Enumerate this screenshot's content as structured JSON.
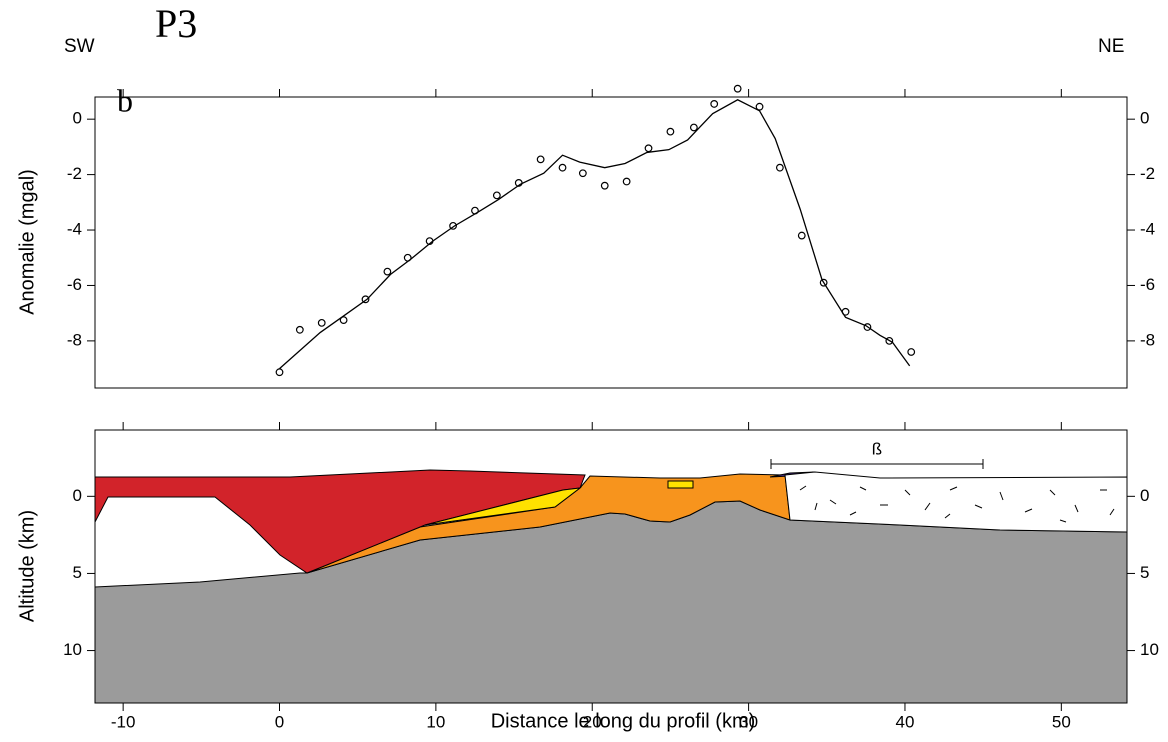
{
  "chart_data": [
    {
      "type": "scatter-line",
      "title": "P3",
      "left_label": "SW",
      "right_label": "NE",
      "panel_label": "b",
      "y_label": "Anomalie (mgal)",
      "xlim": [
        -11.8,
        54.2
      ],
      "xticks": [
        -10,
        0,
        10,
        20,
        30,
        40,
        50
      ],
      "ylim": [
        -9.7,
        0.8
      ],
      "yticks": [
        0,
        -2,
        -4,
        -6,
        -8
      ],
      "series": [
        {
          "style": "markers",
          "color": "#000000",
          "x": [
            0,
            1.3,
            2.7,
            4.1,
            5.5,
            6.9,
            8.2,
            9.6,
            11.1,
            12.5,
            13.9,
            15.3,
            16.7,
            18.1,
            19.4,
            20.8,
            22.2,
            23.6,
            25.0,
            26.5,
            27.8,
            29.3,
            30.7,
            32.0,
            33.4,
            34.8,
            36.2,
            37.6,
            39.0,
            40.4
          ],
          "values": [
            -9.13,
            -7.6,
            -7.35,
            -7.25,
            -6.5,
            -5.5,
            -5.0,
            -4.4,
            -3.85,
            -3.3,
            -2.75,
            -2.3,
            -1.45,
            -1.75,
            -1.95,
            -2.4,
            -2.25,
            -1.05,
            -0.45,
            -0.3,
            0.55,
            1.1,
            0.45,
            -1.75,
            -4.2,
            -5.9,
            -6.95,
            -7.5,
            -8.0,
            -8.4
          ]
        },
        {
          "style": "line",
          "color": "#000000",
          "x": [
            0,
            2.6,
            4.1,
            5.6,
            7.1,
            8.4,
            9.8,
            11.2,
            12.7,
            14,
            15.4,
            16.9,
            18.1,
            19.2,
            20.8,
            22.1,
            23.5,
            24.9,
            26.1,
            27.7,
            29.3,
            30.7,
            31.7,
            33.3,
            34.7,
            36.2,
            37.5,
            38.4,
            39.2,
            40.3
          ],
          "values": [
            -9.0,
            -7.7,
            -7.1,
            -6.5,
            -5.6,
            -5.05,
            -4.4,
            -3.85,
            -3.35,
            -2.9,
            -2.35,
            -1.95,
            -1.3,
            -1.55,
            -1.75,
            -1.6,
            -1.2,
            -1.1,
            -0.75,
            0.2,
            0.7,
            0.3,
            -0.7,
            -3.25,
            -5.8,
            -7.15,
            -7.45,
            -7.8,
            -8.05,
            -8.9
          ]
        }
      ]
    },
    {
      "type": "cross-section",
      "y_label": "Altitude (km)",
      "x_label": "Distance le long du profil (km)",
      "annotation": "ß",
      "xlim": [
        -11.8,
        54.2
      ],
      "xticks": [
        -10,
        0,
        10,
        20,
        30,
        40,
        50
      ],
      "ylim": [
        13.4,
        -4.3
      ],
      "yticks": [
        0,
        5,
        10
      ]
    }
  ]
}
